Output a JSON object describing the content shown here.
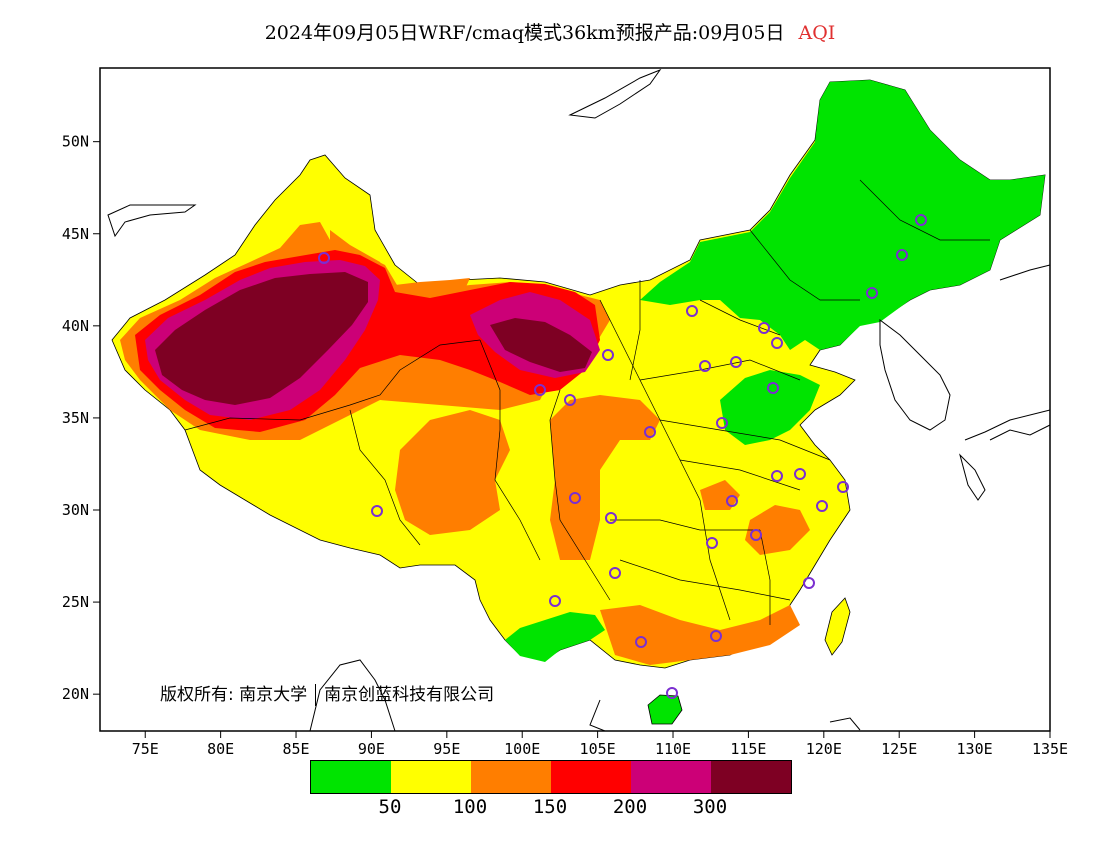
{
  "title": {
    "main": "2024年09月05日WRF/cmaq模式36km预报产品:09月05日",
    "variable": "AQI",
    "variable_color": "#e03030"
  },
  "axes": {
    "lat_labels": [
      "50N",
      "45N",
      "40N",
      "35N",
      "30N",
      "25N",
      "20N"
    ],
    "lat_values": [
      50,
      45,
      40,
      35,
      30,
      25,
      20
    ],
    "lon_labels": [
      "75E",
      "80E",
      "85E",
      "90E",
      "95E",
      "100E",
      "105E",
      "110E",
      "115E",
      "120E",
      "125E",
      "130E",
      "135E"
    ],
    "lon_values": [
      75,
      80,
      85,
      90,
      95,
      100,
      105,
      110,
      115,
      120,
      125,
      130,
      135
    ],
    "lon_range": [
      72,
      135
    ],
    "lat_range": [
      18,
      54
    ]
  },
  "legend": {
    "colors": [
      "#00e400",
      "#ffff00",
      "#ff7e00",
      "#ff0000",
      "#cc0077",
      "#7e0023"
    ],
    "labels": [
      "50",
      "100",
      "150",
      "200",
      "300"
    ],
    "categories": [
      "0-50",
      "50-100",
      "100-150",
      "150-200",
      "200-300",
      ">300"
    ]
  },
  "copyright": {
    "prefix": "版权所有:",
    "owner1": "南京大学",
    "owner2": "南京创蓝科技有限公司"
  },
  "station_markers": {
    "color": "#7b2fd0",
    "icon": "circle-marker-icon"
  }
}
